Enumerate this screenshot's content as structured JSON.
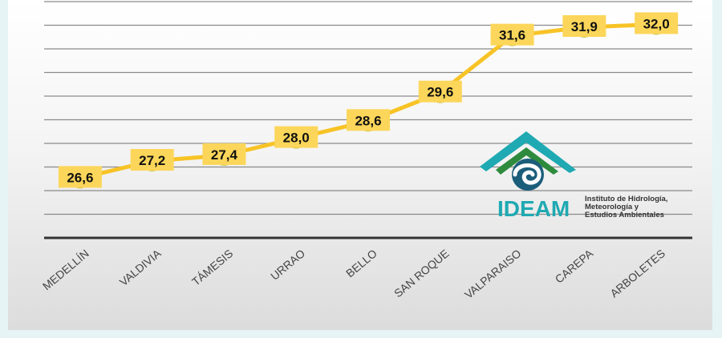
{
  "chart_data": {
    "type": "line",
    "categories": [
      "MEDELLÍN",
      "VALDIVIA",
      "TÁMESIS",
      "URRAO",
      "BELLO",
      "SAN ROQUE",
      "VALPARAISO",
      "CAREPA",
      "ARBOLETES"
    ],
    "values": [
      26.6,
      27.2,
      27.4,
      28.0,
      28.6,
      29.6,
      31.6,
      31.9,
      32.0
    ],
    "value_labels": [
      "26,6",
      "27,2",
      "27,4",
      "28,0",
      "28,6",
      "29,6",
      "31,6",
      "31,9",
      "32,0"
    ],
    "title": "",
    "xlabel": "",
    "ylabel": "",
    "ylim": [
      24.5,
      32.8
    ],
    "grid": true,
    "colors": {
      "line": "#f7c325",
      "label_box": "#fcd65a",
      "marker": "#cfc24a",
      "grid": "#8a8a8a",
      "axis": "#333333"
    }
  },
  "logo": {
    "name": "IDEAM",
    "subtitle_lines": [
      "Instituto de Hidrología,",
      "Meteorología y",
      "Estudios Ambientales"
    ],
    "colors": {
      "primary": "#1fa9b2",
      "accent": "#2e8b3d",
      "dark": "#1b5e7a"
    }
  }
}
